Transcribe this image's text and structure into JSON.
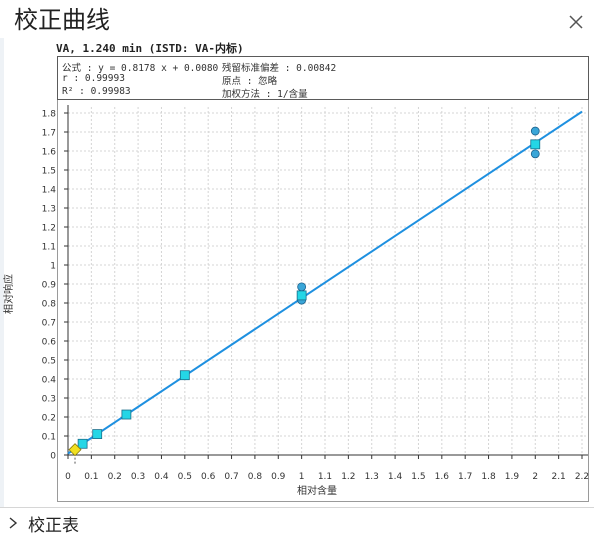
{
  "dialog": {
    "title": "校正曲线",
    "close_icon": "close-icon"
  },
  "calibration": {
    "title": "VA, 1.240 min (ISTD: VA-内标)",
    "formula": "公式 : y = 0.8178 x + 0.0080",
    "r": "r : 0.99993",
    "r2": "R² : 0.99983",
    "residual_std": "残留标准偏差 : 0.00842",
    "origin": "原点 : 忽略",
    "weighting": "加权方法 : 1/含量"
  },
  "chart_data": {
    "type": "scatter",
    "xlabel": "相对含量",
    "ylabel": "相对响应",
    "xlim": [
      0,
      2.2
    ],
    "ylim": [
      0,
      1.8
    ],
    "xticks": [
      0,
      0.1,
      0.2,
      0.3,
      0.4,
      0.5,
      0.6,
      0.7,
      0.8,
      0.9,
      1,
      1.1,
      1.2,
      1.3,
      1.4,
      1.5,
      1.6,
      1.7,
      1.8,
      1.9,
      2,
      2.1,
      2.2
    ],
    "yticks": [
      0,
      0.1,
      0.2,
      0.3,
      0.4,
      0.5,
      0.6,
      0.7,
      0.8,
      0.9,
      1,
      1.1,
      1.2,
      1.3,
      1.4,
      1.5,
      1.6,
      1.7,
      1.8
    ],
    "fit_line": {
      "slope": 0.8178,
      "intercept": 0.008,
      "x_range": [
        0,
        2.2
      ],
      "color": "#1e90e0"
    },
    "mean_points": [
      {
        "x": 0.0625,
        "y": 0.059
      },
      {
        "x": 0.125,
        "y": 0.11
      },
      {
        "x": 0.25,
        "y": 0.213
      },
      {
        "x": 0.5,
        "y": 0.42
      },
      {
        "x": 1.0,
        "y": 0.84
      },
      {
        "x": 2.0,
        "y": 1.635
      }
    ],
    "replicate_points": [
      {
        "x": 1.0,
        "y": 0.885
      },
      {
        "x": 1.0,
        "y": 0.815
      },
      {
        "x": 2.0,
        "y": 1.705
      },
      {
        "x": 2.0,
        "y": 1.585
      }
    ],
    "sample_point": {
      "x": 0.03,
      "y": 0.028,
      "color": "#f0e020"
    },
    "colors": {
      "mean_marker_fill": "#24d6e6",
      "mean_marker_stroke": "#1a6e8a",
      "replicate_fill": "#3aa6d8",
      "replicate_stroke": "#1a5e8a",
      "grid": "#d4d4d4"
    }
  },
  "footer": {
    "section_label": "校正表"
  }
}
